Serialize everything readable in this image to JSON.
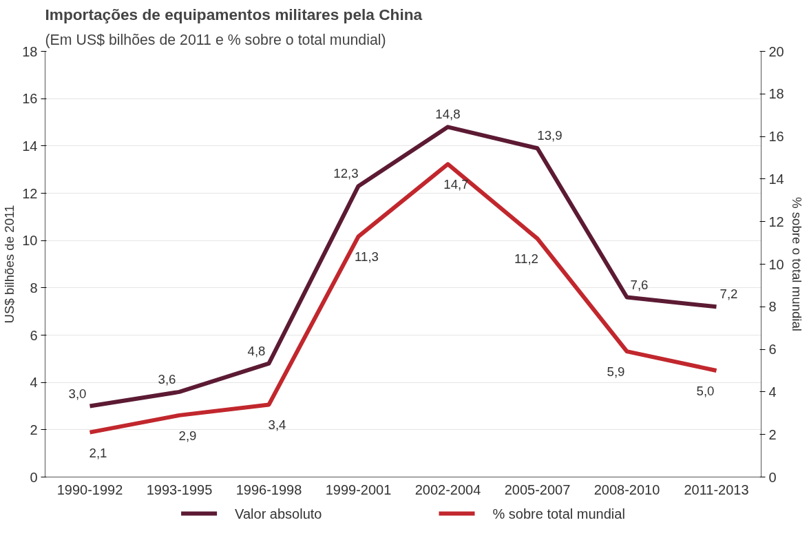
{
  "chart_data": {
    "type": "line",
    "title": "Importações de equipamentos militares pela China",
    "subtitle": "(Em US$ bilhões de 2011 e % sobre o total mundial)",
    "ylabel": "US$ bilhões de 2011",
    "y2label": "% sobre o total mundial",
    "categories": [
      "1990-1992",
      "1993-1995",
      "1996-1998",
      "1999-2001",
      "2002-2004",
      "2005-2007",
      "2008-2010",
      "2011-2013"
    ],
    "series": [
      {
        "name": "Valor absoluto",
        "color": "#5c1a33",
        "values": [
          3.0,
          3.6,
          4.8,
          12.3,
          14.8,
          13.9,
          7.6,
          7.2
        ],
        "value_labels": [
          "3,0",
          "3,6",
          "4,8",
          "12,3",
          "14,8",
          "13,9",
          "7,6",
          "7,2"
        ]
      },
      {
        "name": "% sobre total mundial",
        "color": "#c1272d",
        "values": [
          2.1,
          2.9,
          3.4,
          11.3,
          14.7,
          11.2,
          5.9,
          5.0
        ],
        "value_labels": [
          "2,1",
          "2,9",
          "3,4",
          "11,3",
          "14,7",
          "11,2",
          "5,9",
          "5,0"
        ],
        "axis": "y2"
      }
    ],
    "ylim": [
      0,
      18
    ],
    "yticks": [
      0,
      2,
      4,
      6,
      8,
      10,
      12,
      14,
      16,
      18
    ],
    "y2lim": [
      0,
      20
    ],
    "y2ticks": [
      0,
      2,
      4,
      6,
      8,
      10,
      12,
      14,
      16,
      18,
      20
    ],
    "grid": "y",
    "legend": "bottom",
    "data_labels": true,
    "marker": "none",
    "line_style": "solid"
  }
}
